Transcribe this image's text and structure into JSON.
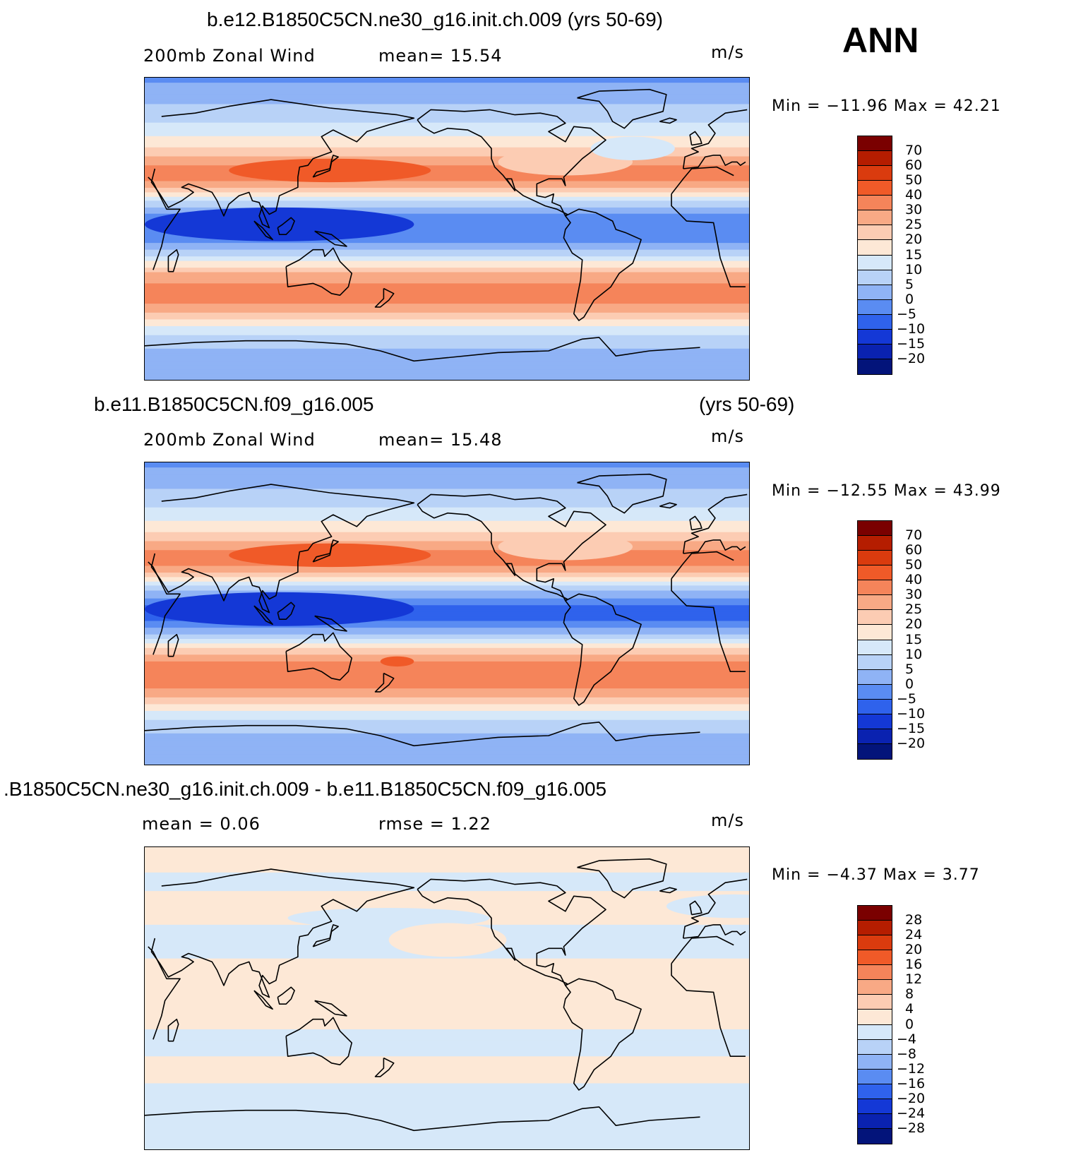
{
  "ann_label": "ANN",
  "panels": [
    {
      "title": "b.e12.B1850C5CN.ne30_g16.init.ch.009 (yrs 50-69)",
      "title_right": "",
      "left_text": "200mb  Zonal  Wind",
      "stat_text": "mean=   15.54",
      "units": "m/s",
      "minmax": "Min  =  −11.96  Max  =    42.21",
      "colorbar_levels": [
        "70",
        "60",
        "50",
        "40",
        "30",
        "25",
        "20",
        "15",
        "10",
        "5",
        "0",
        "−5",
        "−10",
        "−15",
        "−20"
      ],
      "colorbar_colors": [
        "#7a0000",
        "#b51d00",
        "#da3b0e",
        "#f05a28",
        "#f5845a",
        "#f8a985",
        "#fcccb3",
        "#fde8d6",
        "#d6e8f9",
        "#b8d2f7",
        "#8fb3f5",
        "#5a8cf2",
        "#2f62ec",
        "#1438d6",
        "#0a22b0",
        "#03147a"
      ],
      "bands": [
        {
          "lat": 90,
          "val": -2
        },
        {
          "lat": 84,
          "val": 2
        },
        {
          "lat": 76,
          "val": 4
        },
        {
          "lat": 66,
          "val": 8
        },
        {
          "lat": 58,
          "val": 13
        },
        {
          "lat": 50,
          "val": 18
        },
        {
          "lat": 42,
          "val": 26
        },
        {
          "lat": 34,
          "val": 33
        },
        {
          "lat": 26,
          "val": 28
        },
        {
          "lat": 18,
          "val": 12
        },
        {
          "lat": 12,
          "val": 3
        },
        {
          "lat": 4,
          "val": -5
        },
        {
          "lat": -4,
          "val": -4
        },
        {
          "lat": -12,
          "val": 4
        },
        {
          "lat": -20,
          "val": 17
        },
        {
          "lat": -28,
          "val": 28
        },
        {
          "lat": -36,
          "val": 32
        },
        {
          "lat": -44,
          "val": 30
        },
        {
          "lat": -52,
          "val": 22
        },
        {
          "lat": -60,
          "val": 12
        },
        {
          "lat": -68,
          "val": 6
        },
        {
          "lat": -76,
          "val": 3
        },
        {
          "lat": -90,
          "val": 0
        }
      ],
      "blobs": [
        {
          "lon": 110,
          "lat": 3,
          "w": 80,
          "h": 10,
          "val": -12
        },
        {
          "lon": 140,
          "lat": 35,
          "w": 60,
          "h": 7,
          "val": 43
        },
        {
          "lon": -80,
          "lat": 40,
          "w": 40,
          "h": 8,
          "val": 22
        },
        {
          "lon": -40,
          "lat": 48,
          "w": 25,
          "h": 7,
          "val": 12
        }
      ]
    },
    {
      "title": "b.e11.B1850C5CN.f09_g16.005",
      "title_right": "(yrs 50-69)",
      "left_text": "200mb  Zonal  Wind",
      "stat_text": "mean=   15.48",
      "units": "m/s",
      "minmax": "Min  =  −12.55  Max  =    43.99",
      "colorbar_levels": [
        "70",
        "60",
        "50",
        "40",
        "30",
        "25",
        "20",
        "15",
        "10",
        "5",
        "0",
        "−5",
        "−10",
        "−15",
        "−20"
      ],
      "colorbar_colors": [
        "#7a0000",
        "#b51d00",
        "#da3b0e",
        "#f05a28",
        "#f5845a",
        "#f8a985",
        "#fcccb3",
        "#fde8d6",
        "#d6e8f9",
        "#b8d2f7",
        "#8fb3f5",
        "#5a8cf2",
        "#2f62ec",
        "#1438d6",
        "#0a22b0",
        "#03147a"
      ],
      "bands": [
        {
          "lat": 90,
          "val": -2
        },
        {
          "lat": 84,
          "val": 2
        },
        {
          "lat": 76,
          "val": 4
        },
        {
          "lat": 66,
          "val": 8
        },
        {
          "lat": 58,
          "val": 13
        },
        {
          "lat": 50,
          "val": 18
        },
        {
          "lat": 42,
          "val": 27
        },
        {
          "lat": 34,
          "val": 34
        },
        {
          "lat": 26,
          "val": 28
        },
        {
          "lat": 18,
          "val": 12
        },
        {
          "lat": 12,
          "val": 2
        },
        {
          "lat": 4,
          "val": -6
        },
        {
          "lat": -4,
          "val": -5
        },
        {
          "lat": -12,
          "val": 4
        },
        {
          "lat": -20,
          "val": 20
        },
        {
          "lat": -28,
          "val": 30
        },
        {
          "lat": -36,
          "val": 33
        },
        {
          "lat": -44,
          "val": 30
        },
        {
          "lat": -52,
          "val": 22
        },
        {
          "lat": -60,
          "val": 12
        },
        {
          "lat": -68,
          "val": 6
        },
        {
          "lat": -76,
          "val": 3
        },
        {
          "lat": -90,
          "val": 0
        }
      ],
      "blobs": [
        {
          "lon": 110,
          "lat": 3,
          "w": 80,
          "h": 10,
          "val": -12
        },
        {
          "lon": 140,
          "lat": 35,
          "w": 60,
          "h": 7,
          "val": 44
        },
        {
          "lon": 180,
          "lat": -28,
          "w": 10,
          "h": 3,
          "val": 41
        },
        {
          "lon": -80,
          "lat": 40,
          "w": 40,
          "h": 8,
          "val": 22
        }
      ]
    },
    {
      "title": ".B1850C5CN.ne30_g16.init.ch.009 - b.e11.B1850C5CN.f09_g16.005",
      "title_right": "",
      "left_text": "mean  =      0.06",
      "stat_text": "rmse  =      1.22",
      "units": "m/s",
      "minmax": "Min  =      −4.37  Max  =      3.77",
      "colorbar_levels": [
        "28",
        "24",
        "20",
        "16",
        "12",
        "8",
        "4",
        "0",
        "−4",
        "−8",
        "−12",
        "−16",
        "−20",
        "−24",
        "−28"
      ],
      "colorbar_colors": [
        "#7a0000",
        "#b51d00",
        "#da3b0e",
        "#f05a28",
        "#f5845a",
        "#f8a985",
        "#fcccb3",
        "#fde8d6",
        "#d6e8f9",
        "#b8d2f7",
        "#8fb3f5",
        "#5a8cf2",
        "#2f62ec",
        "#1438d6",
        "#0a22b0",
        "#03147a"
      ],
      "bands": [
        {
          "lat": 90,
          "val": 1
        },
        {
          "lat": 80,
          "val": 1
        },
        {
          "lat": 70,
          "val": -1
        },
        {
          "lat": 58,
          "val": 1
        },
        {
          "lat": 48,
          "val": 1
        },
        {
          "lat": 40,
          "val": -1
        },
        {
          "lat": 28,
          "val": -1
        },
        {
          "lat": 20,
          "val": 1
        },
        {
          "lat": 5,
          "val": 1
        },
        {
          "lat": -5,
          "val": 1
        },
        {
          "lat": -14,
          "val": 1
        },
        {
          "lat": -22,
          "val": -1
        },
        {
          "lat": -30,
          "val": -1
        },
        {
          "lat": -38,
          "val": 1
        },
        {
          "lat": -46,
          "val": 1
        },
        {
          "lat": -54,
          "val": -1
        },
        {
          "lat": -64,
          "val": -1
        },
        {
          "lat": -74,
          "val": -1
        },
        {
          "lat": -90,
          "val": -1
        }
      ],
      "blobs": [
        {
          "lon": 175,
          "lat": 48,
          "w": 60,
          "h": 6,
          "val": -1
        },
        {
          "lon": -150,
          "lat": 35,
          "w": 35,
          "h": 10,
          "val": 1
        },
        {
          "lon": 20,
          "lat": 55,
          "w": 40,
          "h": 7,
          "val": -1
        }
      ]
    }
  ]
}
